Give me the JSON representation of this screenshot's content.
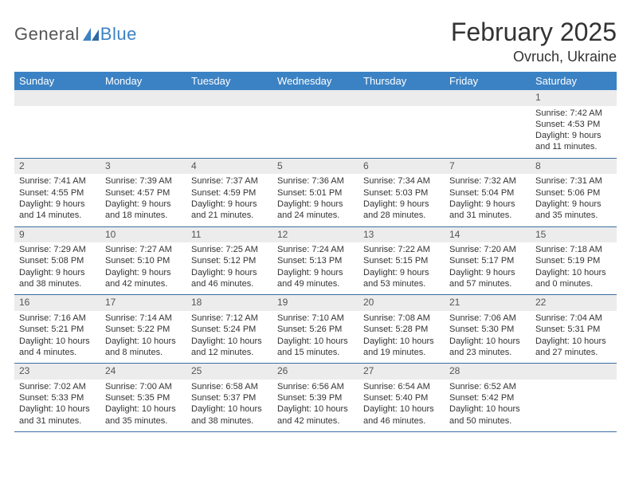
{
  "brand": {
    "part1": "General",
    "part2": "Blue"
  },
  "title": "February 2025",
  "location": "Ovruch, Ukraine",
  "colors": {
    "header_bg": "#3b82c4",
    "header_text": "#ffffff",
    "daynum_bg": "#ececec",
    "rule": "#3b6fa0",
    "brand_blue": "#3b82c4",
    "brand_gray": "#555555"
  },
  "day_names": [
    "Sunday",
    "Monday",
    "Tuesday",
    "Wednesday",
    "Thursday",
    "Friday",
    "Saturday"
  ],
  "weeks": [
    [
      {
        "blank": true
      },
      {
        "blank": true
      },
      {
        "blank": true
      },
      {
        "blank": true
      },
      {
        "blank": true
      },
      {
        "blank": true
      },
      {
        "n": "1",
        "sunrise": "7:42 AM",
        "sunset": "4:53 PM",
        "daylight": "9 hours and 11 minutes."
      }
    ],
    [
      {
        "n": "2",
        "sunrise": "7:41 AM",
        "sunset": "4:55 PM",
        "daylight": "9 hours and 14 minutes."
      },
      {
        "n": "3",
        "sunrise": "7:39 AM",
        "sunset": "4:57 PM",
        "daylight": "9 hours and 18 minutes."
      },
      {
        "n": "4",
        "sunrise": "7:37 AM",
        "sunset": "4:59 PM",
        "daylight": "9 hours and 21 minutes."
      },
      {
        "n": "5",
        "sunrise": "7:36 AM",
        "sunset": "5:01 PM",
        "daylight": "9 hours and 24 minutes."
      },
      {
        "n": "6",
        "sunrise": "7:34 AM",
        "sunset": "5:03 PM",
        "daylight": "9 hours and 28 minutes."
      },
      {
        "n": "7",
        "sunrise": "7:32 AM",
        "sunset": "5:04 PM",
        "daylight": "9 hours and 31 minutes."
      },
      {
        "n": "8",
        "sunrise": "7:31 AM",
        "sunset": "5:06 PM",
        "daylight": "9 hours and 35 minutes."
      }
    ],
    [
      {
        "n": "9",
        "sunrise": "7:29 AM",
        "sunset": "5:08 PM",
        "daylight": "9 hours and 38 minutes."
      },
      {
        "n": "10",
        "sunrise": "7:27 AM",
        "sunset": "5:10 PM",
        "daylight": "9 hours and 42 minutes."
      },
      {
        "n": "11",
        "sunrise": "7:25 AM",
        "sunset": "5:12 PM",
        "daylight": "9 hours and 46 minutes."
      },
      {
        "n": "12",
        "sunrise": "7:24 AM",
        "sunset": "5:13 PM",
        "daylight": "9 hours and 49 minutes."
      },
      {
        "n": "13",
        "sunrise": "7:22 AM",
        "sunset": "5:15 PM",
        "daylight": "9 hours and 53 minutes."
      },
      {
        "n": "14",
        "sunrise": "7:20 AM",
        "sunset": "5:17 PM",
        "daylight": "9 hours and 57 minutes."
      },
      {
        "n": "15",
        "sunrise": "7:18 AM",
        "sunset": "5:19 PM",
        "daylight": "10 hours and 0 minutes."
      }
    ],
    [
      {
        "n": "16",
        "sunrise": "7:16 AM",
        "sunset": "5:21 PM",
        "daylight": "10 hours and 4 minutes."
      },
      {
        "n": "17",
        "sunrise": "7:14 AM",
        "sunset": "5:22 PM",
        "daylight": "10 hours and 8 minutes."
      },
      {
        "n": "18",
        "sunrise": "7:12 AM",
        "sunset": "5:24 PM",
        "daylight": "10 hours and 12 minutes."
      },
      {
        "n": "19",
        "sunrise": "7:10 AM",
        "sunset": "5:26 PM",
        "daylight": "10 hours and 15 minutes."
      },
      {
        "n": "20",
        "sunrise": "7:08 AM",
        "sunset": "5:28 PM",
        "daylight": "10 hours and 19 minutes."
      },
      {
        "n": "21",
        "sunrise": "7:06 AM",
        "sunset": "5:30 PM",
        "daylight": "10 hours and 23 minutes."
      },
      {
        "n": "22",
        "sunrise": "7:04 AM",
        "sunset": "5:31 PM",
        "daylight": "10 hours and 27 minutes."
      }
    ],
    [
      {
        "n": "23",
        "sunrise": "7:02 AM",
        "sunset": "5:33 PM",
        "daylight": "10 hours and 31 minutes."
      },
      {
        "n": "24",
        "sunrise": "7:00 AM",
        "sunset": "5:35 PM",
        "daylight": "10 hours and 35 minutes."
      },
      {
        "n": "25",
        "sunrise": "6:58 AM",
        "sunset": "5:37 PM",
        "daylight": "10 hours and 38 minutes."
      },
      {
        "n": "26",
        "sunrise": "6:56 AM",
        "sunset": "5:39 PM",
        "daylight": "10 hours and 42 minutes."
      },
      {
        "n": "27",
        "sunrise": "6:54 AM",
        "sunset": "5:40 PM",
        "daylight": "10 hours and 46 minutes."
      },
      {
        "n": "28",
        "sunrise": "6:52 AM",
        "sunset": "5:42 PM",
        "daylight": "10 hours and 50 minutes."
      },
      {
        "blank": true
      }
    ]
  ],
  "labels": {
    "sunrise": "Sunrise: ",
    "sunset": "Sunset: ",
    "daylight": "Daylight: "
  }
}
